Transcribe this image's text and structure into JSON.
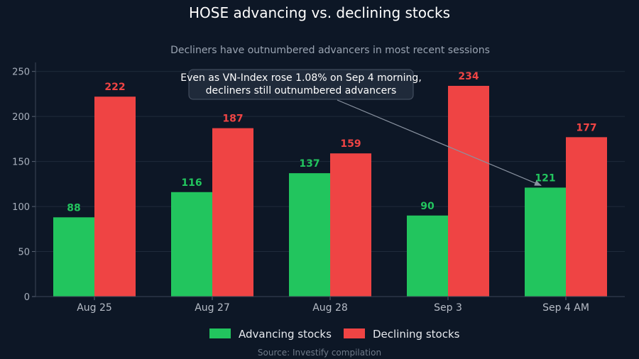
{
  "chart_data": {
    "type": "bar",
    "title": "HOSE advancing vs. declining stocks",
    "subtitle": "Decliners have outnumbered advancers in most recent sessions",
    "categories": [
      "Aug 25",
      "Aug 27",
      "Aug 28",
      "Sep 3",
      "Sep 4 AM"
    ],
    "series": [
      {
        "name": "Advancing stocks",
        "values": [
          88,
          116,
          137,
          90,
          121
        ],
        "color": "#22c55e"
      },
      {
        "name": "Declining stocks",
        "values": [
          222,
          187,
          159,
          234,
          177
        ],
        "color": "#ef4444"
      }
    ],
    "ylim": [
      0,
      260
    ],
    "yticks": [
      0,
      50,
      100,
      150,
      200,
      250
    ],
    "grid": true,
    "legend": "bottom-center",
    "annotation": {
      "lines": [
        "Even as VN-Index rose 1.08% on Sep 4 morning,",
        "decliners still outnumbered advancers"
      ],
      "target": {
        "category": "Sep 4 AM",
        "series": "Advancing stocks"
      }
    },
    "source": "Source: Investify compilation"
  }
}
